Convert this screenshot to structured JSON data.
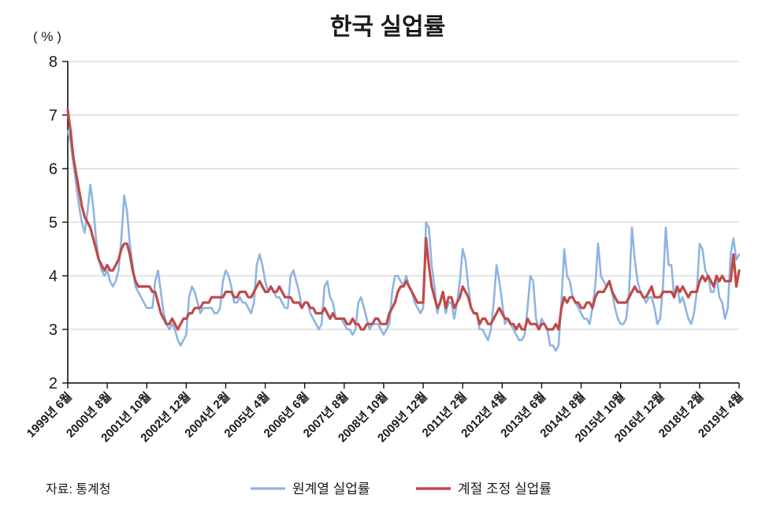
{
  "title": "한국 실업률",
  "y_unit_label": "( % )",
  "source": "자료: 통계청",
  "legend": [
    {
      "label": "원계열 실업률",
      "color": "#8EB4E3"
    },
    {
      "label": "계절 조정 실업률",
      "color": "#BE4B48"
    }
  ],
  "chart_data": {
    "type": "line",
    "title": "한국 실업률",
    "ylabel": "( % )",
    "xlabel": "",
    "ylim": [
      2,
      8
    ],
    "y_ticks": [
      2,
      3,
      4,
      5,
      6,
      7,
      8
    ],
    "grid": "horizontal",
    "legend_position": "bottom",
    "start_month": "1999-06",
    "end_month": "2019-04",
    "x_tick_interval_months": 14,
    "x_tick_labels": [
      "1999년 6월",
      "2000년 8월",
      "2001년 10월",
      "2002년 12월",
      "2004년 2월",
      "2005년 4월",
      "2006년 6월",
      "2007년 8월",
      "2008년 10월",
      "2009년 12월",
      "2011년 2월",
      "2012년 4월",
      "2013년 6월",
      "2014년 8월",
      "2015년 10월",
      "2016년 12월",
      "2018년 2월",
      "2019년 4월"
    ],
    "series": [
      {
        "name": "원계열 실업률",
        "color": "#8EB4E3",
        "width": 2.6,
        "values": [
          6.7,
          6.5,
          6.1,
          5.7,
          5.3,
          5.0,
          4.8,
          5.2,
          5.7,
          5.3,
          4.7,
          4.3,
          4.1,
          4.0,
          4.1,
          3.9,
          3.8,
          3.9,
          4.1,
          4.7,
          5.5,
          5.2,
          4.6,
          4.2,
          3.8,
          3.7,
          3.6,
          3.5,
          3.4,
          3.4,
          3.4,
          3.9,
          4.1,
          3.7,
          3.3,
          3.1,
          3.0,
          3.1,
          3.0,
          2.8,
          2.7,
          2.8,
          2.9,
          3.6,
          3.8,
          3.7,
          3.5,
          3.3,
          3.4,
          3.4,
          3.4,
          3.4,
          3.3,
          3.3,
          3.4,
          3.9,
          4.1,
          4.0,
          3.8,
          3.5,
          3.5,
          3.6,
          3.5,
          3.5,
          3.4,
          3.3,
          3.5,
          4.2,
          4.4,
          4.2,
          3.9,
          3.7,
          3.8,
          3.7,
          3.6,
          3.6,
          3.5,
          3.4,
          3.4,
          4.0,
          4.1,
          3.9,
          3.7,
          3.4,
          3.5,
          3.5,
          3.3,
          3.2,
          3.1,
          3.0,
          3.1,
          3.8,
          3.9,
          3.6,
          3.5,
          3.2,
          3.2,
          3.2,
          3.1,
          3.0,
          3.0,
          2.9,
          3.0,
          3.5,
          3.6,
          3.4,
          3.2,
          3.0,
          3.1,
          3.1,
          3.1,
          3.0,
          2.9,
          3.0,
          3.1,
          3.7,
          4.0,
          4.0,
          3.9,
          3.8,
          4.0,
          3.8,
          3.7,
          3.5,
          3.4,
          3.3,
          3.4,
          5.0,
          4.9,
          4.2,
          3.8,
          3.3,
          3.5,
          3.7,
          3.3,
          3.5,
          3.5,
          3.2,
          3.5,
          3.9,
          4.5,
          4.3,
          3.8,
          3.4,
          3.3,
          3.3,
          3.0,
          3.0,
          2.9,
          2.8,
          3.0,
          3.5,
          4.2,
          3.9,
          3.5,
          3.1,
          3.2,
          3.1,
          3.0,
          2.9,
          2.8,
          2.8,
          2.9,
          3.4,
          4.0,
          3.9,
          3.2,
          3.0,
          3.2,
          3.1,
          3.0,
          2.7,
          2.7,
          2.6,
          2.7,
          3.5,
          4.5,
          4.0,
          3.9,
          3.6,
          3.5,
          3.4,
          3.3,
          3.2,
          3.2,
          3.1,
          3.4,
          3.8,
          4.6,
          4.0,
          3.9,
          3.8,
          3.9,
          3.7,
          3.4,
          3.2,
          3.1,
          3.1,
          3.2,
          3.7,
          4.9,
          4.3,
          3.9,
          3.7,
          3.6,
          3.5,
          3.6,
          3.6,
          3.4,
          3.1,
          3.2,
          3.8,
          4.9,
          4.2,
          4.2,
          3.6,
          3.8,
          3.5,
          3.6,
          3.4,
          3.2,
          3.1,
          3.3,
          3.7,
          4.6,
          4.5,
          4.1,
          4.0,
          3.7,
          3.7,
          4.0,
          3.6,
          3.5,
          3.2,
          3.4,
          4.4,
          4.7,
          4.3,
          4.4
        ]
      },
      {
        "name": "계절 조정 실업률",
        "color": "#BE4B48",
        "width": 3.2,
        "values": [
          7.1,
          6.7,
          6.2,
          5.9,
          5.6,
          5.3,
          5.1,
          5.0,
          4.9,
          4.7,
          4.5,
          4.3,
          4.2,
          4.1,
          4.2,
          4.1,
          4.1,
          4.2,
          4.3,
          4.5,
          4.6,
          4.6,
          4.4,
          4.1,
          3.9,
          3.8,
          3.8,
          3.8,
          3.8,
          3.8,
          3.7,
          3.7,
          3.5,
          3.3,
          3.2,
          3.1,
          3.1,
          3.2,
          3.1,
          3.0,
          3.1,
          3.2,
          3.2,
          3.3,
          3.3,
          3.4,
          3.4,
          3.4,
          3.5,
          3.5,
          3.5,
          3.6,
          3.6,
          3.6,
          3.6,
          3.6,
          3.7,
          3.7,
          3.7,
          3.6,
          3.6,
          3.7,
          3.7,
          3.7,
          3.6,
          3.6,
          3.7,
          3.8,
          3.9,
          3.8,
          3.7,
          3.7,
          3.8,
          3.7,
          3.7,
          3.8,
          3.7,
          3.6,
          3.6,
          3.6,
          3.5,
          3.5,
          3.5,
          3.4,
          3.5,
          3.5,
          3.4,
          3.4,
          3.3,
          3.3,
          3.3,
          3.4,
          3.3,
          3.2,
          3.3,
          3.2,
          3.2,
          3.2,
          3.2,
          3.1,
          3.1,
          3.2,
          3.1,
          3.1,
          3.0,
          3.0,
          3.1,
          3.1,
          3.1,
          3.2,
          3.2,
          3.1,
          3.1,
          3.1,
          3.3,
          3.4,
          3.5,
          3.7,
          3.8,
          3.8,
          3.9,
          3.8,
          3.7,
          3.6,
          3.5,
          3.5,
          3.5,
          4.7,
          4.2,
          3.8,
          3.6,
          3.4,
          3.5,
          3.7,
          3.4,
          3.6,
          3.6,
          3.4,
          3.5,
          3.6,
          3.8,
          3.7,
          3.6,
          3.4,
          3.3,
          3.3,
          3.1,
          3.2,
          3.2,
          3.1,
          3.1,
          3.2,
          3.3,
          3.4,
          3.3,
          3.2,
          3.2,
          3.1,
          3.1,
          3.0,
          3.1,
          3.0,
          3.0,
          3.2,
          3.1,
          3.1,
          3.1,
          3.0,
          3.1,
          3.1,
          3.0,
          3.0,
          3.0,
          3.1,
          3.0,
          3.4,
          3.6,
          3.5,
          3.6,
          3.6,
          3.5,
          3.5,
          3.4,
          3.4,
          3.5,
          3.5,
          3.4,
          3.6,
          3.7,
          3.7,
          3.7,
          3.8,
          3.9,
          3.7,
          3.6,
          3.5,
          3.5,
          3.5,
          3.5,
          3.6,
          3.7,
          3.8,
          3.7,
          3.7,
          3.6,
          3.6,
          3.7,
          3.8,
          3.6,
          3.6,
          3.6,
          3.7,
          3.7,
          3.7,
          3.7,
          3.6,
          3.8,
          3.7,
          3.8,
          3.7,
          3.6,
          3.7,
          3.7,
          3.7,
          3.9,
          4.0,
          3.9,
          4.0,
          3.9,
          3.8,
          4.0,
          3.9,
          4.0,
          3.9,
          3.9,
          3.9,
          4.4,
          3.8,
          4.1
        ]
      }
    ]
  }
}
